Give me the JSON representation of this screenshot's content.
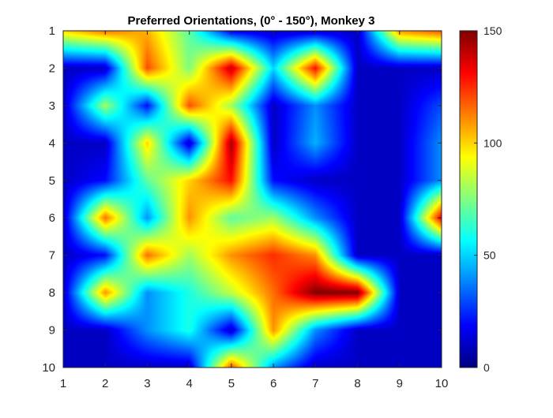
{
  "chart_data": {
    "type": "heatmap",
    "title": "Preferred Orientations, (0° - 150°), Monkey 3",
    "xlabel": "",
    "ylabel": "",
    "x": [
      1,
      2,
      3,
      4,
      5,
      6,
      7,
      8,
      9,
      10
    ],
    "y": [
      1,
      2,
      3,
      4,
      5,
      6,
      7,
      8,
      9,
      10
    ],
    "xlim": [
      1,
      10
    ],
    "ylim": [
      1,
      10
    ],
    "y_direction": "reverse",
    "colormap": "jet",
    "clim": [
      0,
      150
    ],
    "shading": "interp",
    "x_ticks": [
      "1",
      "2",
      "3",
      "4",
      "5",
      "6",
      "7",
      "8",
      "9",
      "10"
    ],
    "y_ticks": [
      "1",
      "2",
      "3",
      "4",
      "5",
      "6",
      "7",
      "8",
      "9",
      "10"
    ],
    "colorbar_ticks": [
      "0",
      "50",
      "100",
      "150"
    ],
    "colorbar_tick_values": [
      0,
      50,
      100,
      150
    ],
    "z": [
      [
        100,
        115,
        105,
        70,
        15,
        10,
        10,
        10,
        110,
        120
      ],
      [
        10,
        10,
        120,
        75,
        140,
        50,
        130,
        10,
        10,
        10
      ],
      [
        10,
        80,
        20,
        120,
        80,
        10,
        40,
        10,
        10,
        30
      ],
      [
        10,
        10,
        100,
        10,
        145,
        10,
        45,
        10,
        10,
        40
      ],
      [
        10,
        20,
        70,
        100,
        130,
        20,
        10,
        10,
        10,
        40
      ],
      [
        10,
        115,
        40,
        110,
        70,
        80,
        40,
        10,
        10,
        135
      ],
      [
        10,
        20,
        115,
        80,
        110,
        125,
        110,
        10,
        10,
        10
      ],
      [
        10,
        110,
        40,
        60,
        85,
        115,
        150,
        150,
        10,
        10
      ],
      [
        10,
        10,
        40,
        60,
        10,
        110,
        40,
        10,
        10,
        10
      ],
      [
        10,
        10,
        10,
        10,
        120,
        40,
        10,
        10,
        10,
        10
      ]
    ]
  }
}
